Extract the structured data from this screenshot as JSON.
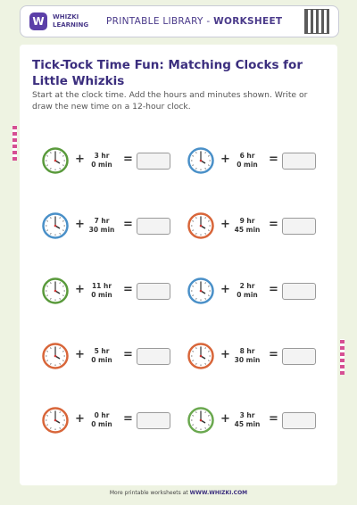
{
  "header": {
    "brand_top": "WHIZKI",
    "brand_bottom": "LEARNING",
    "library": "PRINTABLE LIBRARY - ",
    "kind": "WORKSHEET",
    "logo": "W"
  },
  "title": "Tick-Tock Time Fun: Matching Clocks for Little Whizkis",
  "instructions": "Start at the clock time. Add the hours and minutes shown. Write or draw the new time on a 12-hour clock.",
  "operators": {
    "plus": "+",
    "equals": "="
  },
  "problems": [
    {
      "hours": "3 hr",
      "minutes": "0 min",
      "clock_color": "#5a9a3c"
    },
    {
      "hours": "6 hr",
      "minutes": "0 min",
      "clock_color": "#4a90c8"
    },
    {
      "hours": "7 hr",
      "minutes": "30 min",
      "clock_color": "#4a90c8"
    },
    {
      "hours": "9 hr",
      "minutes": "45 min",
      "clock_color": "#d8663a"
    },
    {
      "hours": "11 hr",
      "minutes": "0 min",
      "clock_color": "#5a9a3c"
    },
    {
      "hours": "2 hr",
      "minutes": "0 min",
      "clock_color": "#4a90c8"
    },
    {
      "hours": "5 hr",
      "minutes": "0 min",
      "clock_color": "#d8663a"
    },
    {
      "hours": "8 hr",
      "minutes": "30 min",
      "clock_color": "#d8663a"
    },
    {
      "hours": "0 hr",
      "minutes": "0 min",
      "clock_color": "#d8663a"
    },
    {
      "hours": "3 hr",
      "minutes": "45 min",
      "clock_color": "#6aa84f"
    }
  ],
  "footer": {
    "text": "More printable worksheets at ",
    "site": "WWW.WHIZKI.COM"
  }
}
